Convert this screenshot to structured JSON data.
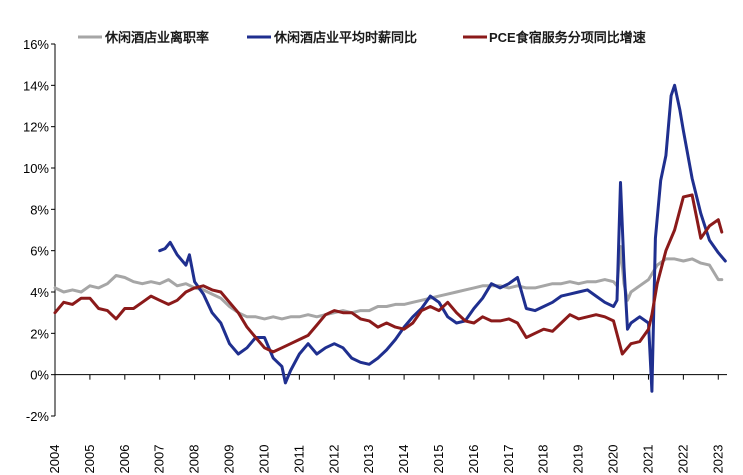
{
  "chart_data": {
    "type": "line",
    "title": "",
    "xlabel": "",
    "ylabel": "",
    "ylim": [
      -2,
      16
    ],
    "xlim": [
      2004,
      2023.25
    ],
    "x_ticks": [
      "2004",
      "2005",
      "2006",
      "2007",
      "2008",
      "2009",
      "2010",
      "2011",
      "2012",
      "2013",
      "2014",
      "2015",
      "2016",
      "2017",
      "2018",
      "2019",
      "2020",
      "2021",
      "2022",
      "2023"
    ],
    "y_ticks": [
      "16%",
      "14%",
      "12%",
      "10%",
      "8%",
      "6%",
      "4%",
      "2%",
      "0%",
      "-2%"
    ],
    "legend_position": "top",
    "grid": false,
    "series": [
      {
        "name": "休闲酒店业离职率",
        "color": "#a6a6a6",
        "points": [
          [
            2004.0,
            4.2
          ],
          [
            2004.25,
            4.0
          ],
          [
            2004.5,
            4.1
          ],
          [
            2004.75,
            4.0
          ],
          [
            2005.0,
            4.3
          ],
          [
            2005.25,
            4.2
          ],
          [
            2005.5,
            4.4
          ],
          [
            2005.75,
            4.8
          ],
          [
            2006.0,
            4.7
          ],
          [
            2006.25,
            4.5
          ],
          [
            2006.5,
            4.4
          ],
          [
            2006.75,
            4.5
          ],
          [
            2007.0,
            4.4
          ],
          [
            2007.25,
            4.6
          ],
          [
            2007.5,
            4.3
          ],
          [
            2007.75,
            4.4
          ],
          [
            2008.0,
            4.2
          ],
          [
            2008.25,
            4.1
          ],
          [
            2008.5,
            3.9
          ],
          [
            2008.75,
            3.7
          ],
          [
            2009.0,
            3.3
          ],
          [
            2009.25,
            3.0
          ],
          [
            2009.5,
            2.8
          ],
          [
            2009.75,
            2.8
          ],
          [
            2010.0,
            2.7
          ],
          [
            2010.25,
            2.8
          ],
          [
            2010.5,
            2.7
          ],
          [
            2010.75,
            2.8
          ],
          [
            2011.0,
            2.8
          ],
          [
            2011.25,
            2.9
          ],
          [
            2011.5,
            2.8
          ],
          [
            2011.75,
            2.9
          ],
          [
            2012.0,
            3.0
          ],
          [
            2012.25,
            3.1
          ],
          [
            2012.5,
            3.0
          ],
          [
            2012.75,
            3.1
          ],
          [
            2013.0,
            3.1
          ],
          [
            2013.25,
            3.3
          ],
          [
            2013.5,
            3.3
          ],
          [
            2013.75,
            3.4
          ],
          [
            2014.0,
            3.4
          ],
          [
            2014.25,
            3.5
          ],
          [
            2014.5,
            3.6
          ],
          [
            2014.75,
            3.7
          ],
          [
            2015.0,
            3.8
          ],
          [
            2015.25,
            3.9
          ],
          [
            2015.5,
            4.0
          ],
          [
            2015.75,
            4.1
          ],
          [
            2016.0,
            4.2
          ],
          [
            2016.25,
            4.3
          ],
          [
            2016.5,
            4.3
          ],
          [
            2016.75,
            4.3
          ],
          [
            2017.0,
            4.2
          ],
          [
            2017.25,
            4.3
          ],
          [
            2017.5,
            4.2
          ],
          [
            2017.75,
            4.2
          ],
          [
            2018.0,
            4.3
          ],
          [
            2018.25,
            4.4
          ],
          [
            2018.5,
            4.4
          ],
          [
            2018.75,
            4.5
          ],
          [
            2019.0,
            4.4
          ],
          [
            2019.25,
            4.5
          ],
          [
            2019.5,
            4.5
          ],
          [
            2019.75,
            4.6
          ],
          [
            2020.0,
            4.5
          ],
          [
            2020.1,
            4.3
          ],
          [
            2020.2,
            6.2
          ],
          [
            2020.3,
            4.4
          ],
          [
            2020.4,
            3.6
          ],
          [
            2020.5,
            4.0
          ],
          [
            2020.75,
            4.3
          ],
          [
            2021.0,
            4.6
          ],
          [
            2021.25,
            5.3
          ],
          [
            2021.5,
            5.6
          ],
          [
            2021.75,
            5.6
          ],
          [
            2022.0,
            5.5
          ],
          [
            2022.25,
            5.6
          ],
          [
            2022.5,
            5.4
          ],
          [
            2022.75,
            5.3
          ],
          [
            2023.0,
            4.6
          ],
          [
            2023.1,
            4.6
          ]
        ]
      },
      {
        "name": "休闲酒店业平均时薪同比",
        "color": "#1f2f8f",
        "points": [
          [
            2007.0,
            6.0
          ],
          [
            2007.15,
            6.1
          ],
          [
            2007.3,
            6.4
          ],
          [
            2007.5,
            5.8
          ],
          [
            2007.75,
            5.3
          ],
          [
            2007.85,
            5.8
          ],
          [
            2008.0,
            4.5
          ],
          [
            2008.25,
            3.9
          ],
          [
            2008.5,
            3.0
          ],
          [
            2008.75,
            2.5
          ],
          [
            2009.0,
            1.5
          ],
          [
            2009.25,
            1.0
          ],
          [
            2009.5,
            1.3
          ],
          [
            2009.75,
            1.8
          ],
          [
            2010.0,
            1.8
          ],
          [
            2010.25,
            0.8
          ],
          [
            2010.5,
            0.4
          ],
          [
            2010.6,
            -0.4
          ],
          [
            2010.75,
            0.2
          ],
          [
            2011.0,
            1.0
          ],
          [
            2011.25,
            1.5
          ],
          [
            2011.5,
            1.0
          ],
          [
            2011.75,
            1.3
          ],
          [
            2012.0,
            1.5
          ],
          [
            2012.25,
            1.3
          ],
          [
            2012.5,
            0.8
          ],
          [
            2012.75,
            0.6
          ],
          [
            2013.0,
            0.5
          ],
          [
            2013.25,
            0.8
          ],
          [
            2013.5,
            1.2
          ],
          [
            2013.75,
            1.7
          ],
          [
            2014.0,
            2.3
          ],
          [
            2014.25,
            2.8
          ],
          [
            2014.5,
            3.2
          ],
          [
            2014.75,
            3.8
          ],
          [
            2015.0,
            3.5
          ],
          [
            2015.25,
            2.8
          ],
          [
            2015.5,
            2.5
          ],
          [
            2015.75,
            2.6
          ],
          [
            2016.0,
            3.2
          ],
          [
            2016.25,
            3.7
          ],
          [
            2016.5,
            4.4
          ],
          [
            2016.75,
            4.2
          ],
          [
            2017.0,
            4.4
          ],
          [
            2017.25,
            4.7
          ],
          [
            2017.5,
            3.2
          ],
          [
            2017.75,
            3.1
          ],
          [
            2018.0,
            3.3
          ],
          [
            2018.25,
            3.5
          ],
          [
            2018.5,
            3.8
          ],
          [
            2018.75,
            3.9
          ],
          [
            2019.0,
            4.0
          ],
          [
            2019.25,
            4.1
          ],
          [
            2019.5,
            3.8
          ],
          [
            2019.75,
            3.5
          ],
          [
            2020.0,
            3.3
          ],
          [
            2020.1,
            3.6
          ],
          [
            2020.2,
            9.3
          ],
          [
            2020.3,
            5.2
          ],
          [
            2020.4,
            2.2
          ],
          [
            2020.5,
            2.5
          ],
          [
            2020.75,
            2.8
          ],
          [
            2021.0,
            2.5
          ],
          [
            2021.1,
            -0.8
          ],
          [
            2021.2,
            6.6
          ],
          [
            2021.35,
            9.4
          ],
          [
            2021.5,
            10.6
          ],
          [
            2021.65,
            13.5
          ],
          [
            2021.75,
            14.0
          ],
          [
            2021.9,
            12.8
          ],
          [
            2022.0,
            11.8
          ],
          [
            2022.25,
            9.5
          ],
          [
            2022.5,
            7.8
          ],
          [
            2022.75,
            6.5
          ],
          [
            2023.0,
            5.9
          ],
          [
            2023.2,
            5.5
          ]
        ]
      },
      {
        "name": "PCE食宿服务分项同比增速",
        "color": "#8b1a1a",
        "points": [
          [
            2004.0,
            3.0
          ],
          [
            2004.25,
            3.5
          ],
          [
            2004.5,
            3.4
          ],
          [
            2004.75,
            3.7
          ],
          [
            2005.0,
            3.7
          ],
          [
            2005.25,
            3.2
          ],
          [
            2005.5,
            3.1
          ],
          [
            2005.75,
            2.7
          ],
          [
            2006.0,
            3.2
          ],
          [
            2006.25,
            3.2
          ],
          [
            2006.5,
            3.5
          ],
          [
            2006.75,
            3.8
          ],
          [
            2007.0,
            3.6
          ],
          [
            2007.25,
            3.4
          ],
          [
            2007.5,
            3.6
          ],
          [
            2007.75,
            4.0
          ],
          [
            2008.0,
            4.2
          ],
          [
            2008.25,
            4.3
          ],
          [
            2008.5,
            4.1
          ],
          [
            2008.75,
            4.0
          ],
          [
            2009.0,
            3.5
          ],
          [
            2009.25,
            3.0
          ],
          [
            2009.5,
            2.3
          ],
          [
            2009.75,
            1.8
          ],
          [
            2010.0,
            1.3
          ],
          [
            2010.25,
            1.1
          ],
          [
            2010.5,
            1.3
          ],
          [
            2010.75,
            1.5
          ],
          [
            2011.0,
            1.7
          ],
          [
            2011.25,
            1.9
          ],
          [
            2011.5,
            2.4
          ],
          [
            2011.75,
            2.9
          ],
          [
            2012.0,
            3.1
          ],
          [
            2012.25,
            3.0
          ],
          [
            2012.5,
            3.0
          ],
          [
            2012.75,
            2.7
          ],
          [
            2013.0,
            2.6
          ],
          [
            2013.25,
            2.3
          ],
          [
            2013.5,
            2.5
          ],
          [
            2013.75,
            2.3
          ],
          [
            2014.0,
            2.2
          ],
          [
            2014.25,
            2.5
          ],
          [
            2014.5,
            3.1
          ],
          [
            2014.75,
            3.3
          ],
          [
            2015.0,
            3.1
          ],
          [
            2015.25,
            3.5
          ],
          [
            2015.5,
            3.0
          ],
          [
            2015.75,
            2.6
          ],
          [
            2016.0,
            2.5
          ],
          [
            2016.25,
            2.8
          ],
          [
            2016.5,
            2.6
          ],
          [
            2016.75,
            2.6
          ],
          [
            2017.0,
            2.7
          ],
          [
            2017.25,
            2.5
          ],
          [
            2017.5,
            1.8
          ],
          [
            2017.75,
            2.0
          ],
          [
            2018.0,
            2.2
          ],
          [
            2018.25,
            2.1
          ],
          [
            2018.5,
            2.5
          ],
          [
            2018.75,
            2.9
          ],
          [
            2019.0,
            2.7
          ],
          [
            2019.25,
            2.8
          ],
          [
            2019.5,
            2.9
          ],
          [
            2019.75,
            2.8
          ],
          [
            2020.0,
            2.6
          ],
          [
            2020.25,
            1.0
          ],
          [
            2020.5,
            1.5
          ],
          [
            2020.75,
            1.6
          ],
          [
            2021.0,
            2.2
          ],
          [
            2021.1,
            2.9
          ],
          [
            2021.25,
            4.4
          ],
          [
            2021.5,
            6.0
          ],
          [
            2021.75,
            7.0
          ],
          [
            2022.0,
            8.6
          ],
          [
            2022.25,
            8.7
          ],
          [
            2022.5,
            6.6
          ],
          [
            2022.75,
            7.2
          ],
          [
            2023.0,
            7.5
          ],
          [
            2023.1,
            6.9
          ]
        ]
      }
    ]
  }
}
